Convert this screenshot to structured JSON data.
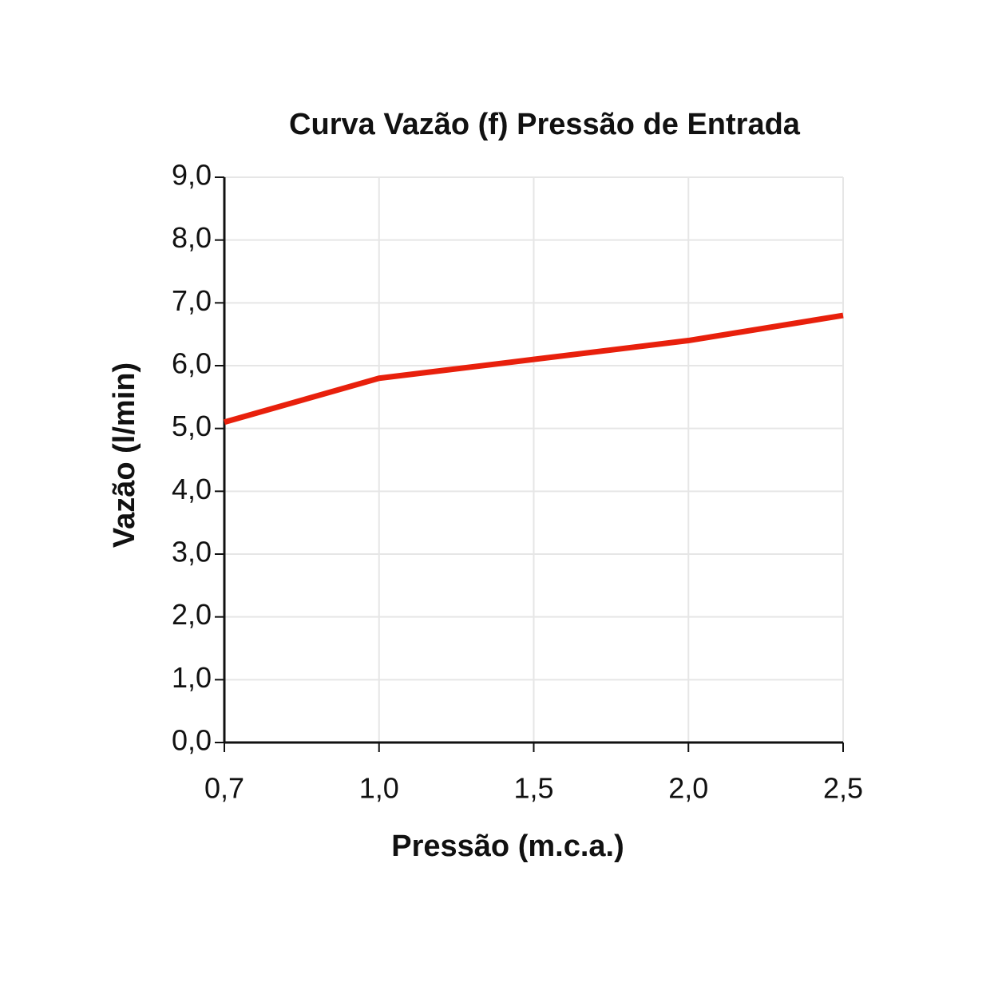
{
  "chart_data": {
    "type": "line",
    "title": "Curva Vazão (f) Pressão de Entrada",
    "x_label": "Pressão (m.c.a.)",
    "y_label": "Vazão (l/min)",
    "categories": [
      "0,7",
      "1,0",
      "1,5",
      "2,0",
      "2,5"
    ],
    "series": [
      {
        "color": "#e8200c",
        "values": [
          5.1,
          5.8,
          6.1,
          6.4,
          6.8
        ]
      }
    ],
    "ylim": [
      0,
      9
    ],
    "yticks": [
      {
        "value": 0,
        "label": "0,0"
      },
      {
        "value": 1,
        "label": "1,0"
      },
      {
        "value": 2,
        "label": "2,0"
      },
      {
        "value": 3,
        "label": "3,0"
      },
      {
        "value": 4,
        "label": "4,0"
      },
      {
        "value": 5,
        "label": "5,0"
      },
      {
        "value": 6,
        "label": "6,0"
      },
      {
        "value": 7,
        "label": "7,0"
      },
      {
        "value": 8,
        "label": "8,0"
      },
      {
        "value": 9,
        "label": "9,0"
      }
    ],
    "grid": true
  }
}
